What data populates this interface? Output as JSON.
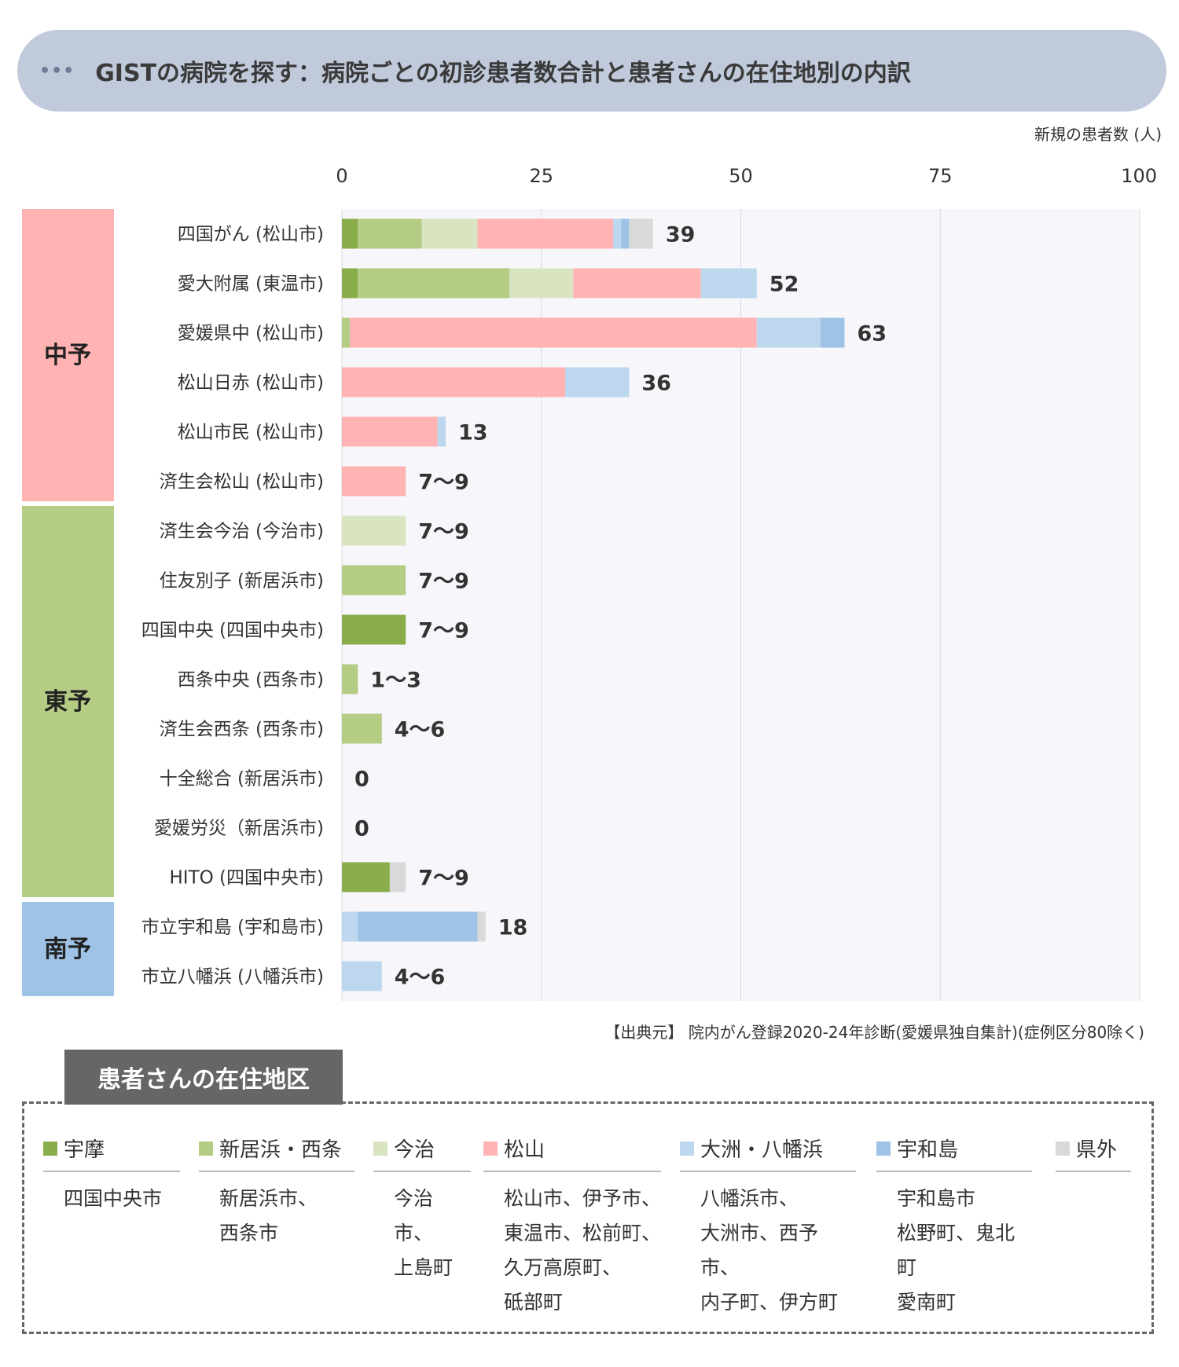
{
  "header": {
    "dots": "•••",
    "title": "GISTの病院を探す：病院ごとの初診患者数合計と患者さんの在住地別の内訳"
  },
  "chart_data": {
    "type": "bar",
    "orientation": "horizontal",
    "stacked": true,
    "axis_title": "新規の患者数 (人)",
    "xlim": [
      0,
      100
    ],
    "xticks": [
      0,
      25,
      50,
      75,
      100
    ],
    "grid": true,
    "groups": [
      {
        "name": "中予",
        "color": "#ffb3b3",
        "start": 0,
        "count": 6
      },
      {
        "name": "東予",
        "color": "#b5cc84",
        "start": 6,
        "count": 8
      },
      {
        "name": "南予",
        "color": "#9ec3e6",
        "start": 14,
        "count": 2
      }
    ],
    "segment_colors": {
      "宇摩": "#88ad4a",
      "新居浜・西条": "#b5cc84",
      "今治": "#d9e5c1",
      "松山": "#ffb3b3",
      "大洲・八幡浜": "#bdd7ee",
      "宇和島": "#9ec3e6",
      "県外": "#d9d9d9"
    },
    "hospitals": [
      {
        "label": "四国がん (松山市)",
        "total_label": "39",
        "segments": [
          [
            "宇摩",
            2
          ],
          [
            "新居浜・西条",
            8
          ],
          [
            "今治",
            7
          ],
          [
            "松山",
            17
          ],
          [
            "大洲・八幡浜",
            1
          ],
          [
            "宇和島",
            1
          ],
          [
            "県外",
            3
          ]
        ]
      },
      {
        "label": "愛大附属 (東温市)",
        "total_label": "52",
        "segments": [
          [
            "宇摩",
            2
          ],
          [
            "新居浜・西条",
            19
          ],
          [
            "今治",
            8
          ],
          [
            "松山",
            16
          ],
          [
            "大洲・八幡浜",
            7
          ]
        ]
      },
      {
        "label": "愛媛県中 (松山市)",
        "total_label": "63",
        "segments": [
          [
            "新居浜・西条",
            1
          ],
          [
            "松山",
            51
          ],
          [
            "大洲・八幡浜",
            8
          ],
          [
            "宇和島",
            3
          ]
        ]
      },
      {
        "label": "松山日赤 (松山市)",
        "total_label": "36",
        "segments": [
          [
            "松山",
            28
          ],
          [
            "大洲・八幡浜",
            8
          ]
        ]
      },
      {
        "label": "松山市民 (松山市)",
        "total_label": "13",
        "segments": [
          [
            "松山",
            12
          ],
          [
            "大洲・八幡浜",
            1
          ]
        ]
      },
      {
        "label": "済生会松山 (松山市)",
        "total_label": "7～9",
        "segments": [
          [
            "松山",
            8
          ]
        ]
      },
      {
        "label": "済生会今治 (今治市)",
        "total_label": "7～9",
        "segments": [
          [
            "今治",
            8
          ]
        ]
      },
      {
        "label": "住友別子 (新居浜市)",
        "total_label": "7～9",
        "segments": [
          [
            "新居浜・西条",
            8
          ]
        ]
      },
      {
        "label": "四国中央 (四国中央市)",
        "total_label": "7～9",
        "segments": [
          [
            "宇摩",
            8
          ]
        ]
      },
      {
        "label": "西条中央 (西条市)",
        "total_label": "1～3",
        "segments": [
          [
            "新居浜・西条",
            2
          ]
        ]
      },
      {
        "label": "済生会西条 (西条市)",
        "total_label": "4～6",
        "segments": [
          [
            "新居浜・西条",
            5
          ]
        ]
      },
      {
        "label": "十全総合 (新居浜市)",
        "total_label": "0",
        "segments": []
      },
      {
        "label": "愛媛労災（新居浜市)",
        "total_label": "0",
        "segments": []
      },
      {
        "label": "HITO (四国中央市)",
        "total_label": "7～9",
        "segments": [
          [
            "宇摩",
            6
          ],
          [
            "県外",
            2
          ]
        ]
      },
      {
        "label": "市立宇和島 (宇和島市)",
        "total_label": "18",
        "segments": [
          [
            "大洲・八幡浜",
            2
          ],
          [
            "宇和島",
            15
          ],
          [
            "県外",
            1
          ]
        ]
      },
      {
        "label": "市立八幡浜 (八幡浜市)",
        "total_label": "4～6",
        "segments": [
          [
            "大洲・八幡浜",
            5
          ]
        ]
      }
    ]
  },
  "source": "【出典元】 院内がん登録2020-24年診断(愛媛県独自集計)(症例区分80除く)",
  "legend": {
    "title": "患者さんの在住地区",
    "items": [
      {
        "name": "宇摩",
        "color": "#88ad4a",
        "areas": "四国中央市"
      },
      {
        "name": "新居浜・西条",
        "color": "#b5cc84",
        "areas": "新居浜市、\n西条市"
      },
      {
        "name": "今治",
        "color": "#d9e5c1",
        "areas": "今治市、\n上島町"
      },
      {
        "name": "松山",
        "color": "#ffb3b3",
        "areas": "松山市、伊予市、\n東温市、松前町、\n久万高原町、\n砥部町"
      },
      {
        "name": "大洲・八幡浜",
        "color": "#bdd7ee",
        "areas": "八幡浜市、\n大洲市、西予市、\n内子町、伊方町"
      },
      {
        "name": "宇和島",
        "color": "#9ec3e6",
        "areas": "宇和島市\n松野町、鬼北町\n愛南町"
      },
      {
        "name": "県外",
        "color": "#d9d9d9",
        "areas": ""
      }
    ]
  }
}
